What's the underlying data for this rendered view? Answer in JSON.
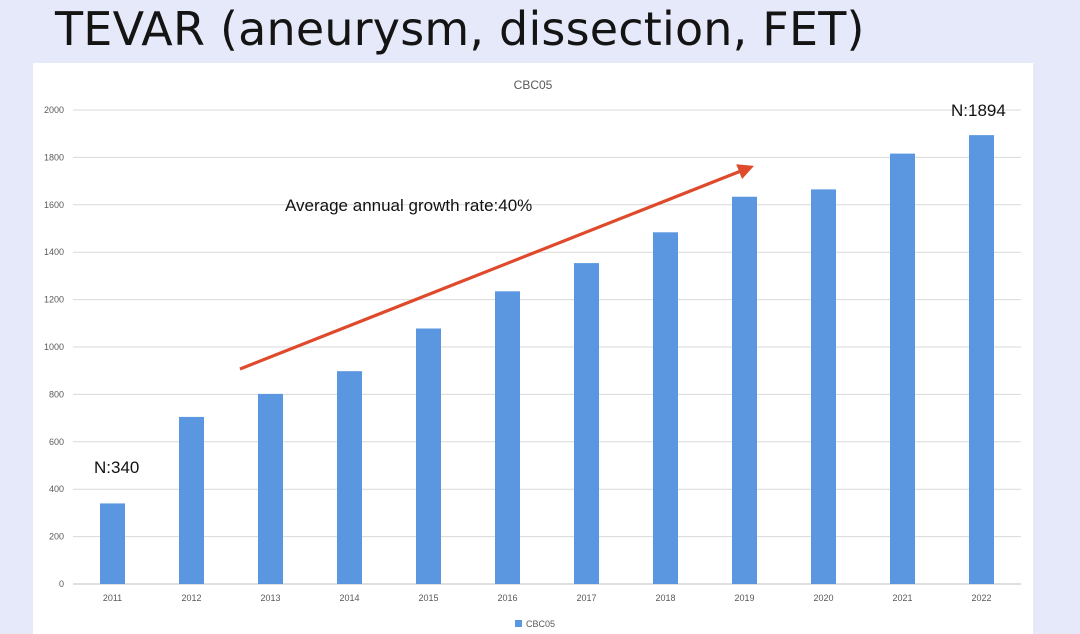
{
  "slide": {
    "title": "TEVAR (aneurysm, dissection, FET)"
  },
  "chart_data": {
    "type": "bar",
    "title": "CBC05",
    "xlabel": "",
    "ylabel": "",
    "categories": [
      "2011",
      "2012",
      "2013",
      "2014",
      "2015",
      "2016",
      "2017",
      "2018",
      "2019",
      "2020",
      "2021",
      "2022"
    ],
    "series": [
      {
        "name": "CBC05",
        "values": [
          340,
          705,
          802,
          898,
          1078,
          1235,
          1354,
          1484,
          1634,
          1665,
          1816,
          1894
        ]
      }
    ],
    "ylim": [
      0,
      2000
    ],
    "yticks": [
      0,
      200,
      400,
      600,
      800,
      1000,
      1200,
      1400,
      1600,
      1800,
      2000
    ],
    "grid": true,
    "legend": "bottom",
    "annotations": [
      {
        "text": "N:340"
      },
      {
        "text": "N:1894"
      },
      {
        "text": "Average annual growth rate:40%"
      }
    ],
    "colors": {
      "bar": "#5b96e1",
      "arrow": "#e04a2c",
      "grid": "#d9d9d9"
    }
  }
}
